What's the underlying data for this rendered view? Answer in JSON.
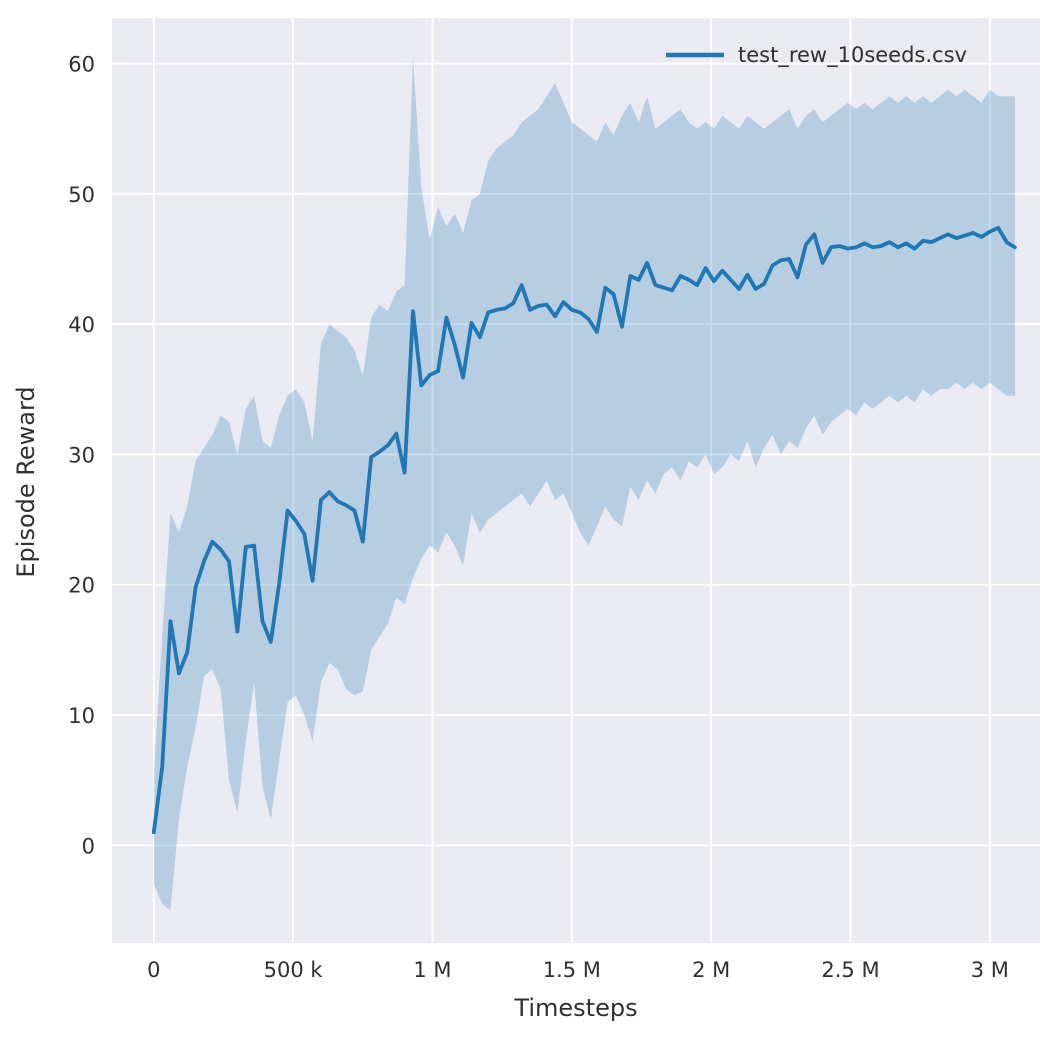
{
  "chart_data": {
    "type": "line",
    "title": "",
    "xlabel": "Timesteps",
    "ylabel": "Episode Reward",
    "legend": [
      {
        "label": "test_rew_10seeds.csv",
        "color": "#1f77b4"
      }
    ],
    "legend_position": "upper right",
    "grid": true,
    "plot_bg": "#eaeaf2",
    "grid_color": "#ffffff",
    "line_color": "#1f77b4",
    "band_color": "#1f77b4",
    "band_opacity": 0.25,
    "xlim": [
      -150000,
      3180000
    ],
    "ylim": [
      -7.5,
      63.5
    ],
    "xticks": {
      "values": [
        0,
        500000,
        1000000,
        1500000,
        2000000,
        2500000,
        3000000
      ],
      "labels": [
        "0",
        "500 k",
        "1 M",
        "1.5 M",
        "2 M",
        "2.5 M",
        "3 M"
      ]
    },
    "yticks": {
      "values": [
        0,
        10,
        20,
        30,
        40,
        50,
        60
      ],
      "labels": [
        "0",
        "10",
        "20",
        "30",
        "40",
        "50",
        "60"
      ]
    },
    "x": [
      0,
      30000,
      60000,
      90000,
      120000,
      150000,
      180000,
      210000,
      240000,
      270000,
      300000,
      330000,
      360000,
      390000,
      420000,
      450000,
      480000,
      510000,
      540000,
      570000,
      600000,
      630000,
      660000,
      690000,
      720000,
      750000,
      780000,
      810000,
      840000,
      870000,
      900000,
      930000,
      960000,
      990000,
      1020000,
      1050000,
      1080000,
      1110000,
      1140000,
      1170000,
      1200000,
      1230000,
      1260000,
      1290000,
      1320000,
      1350000,
      1380000,
      1410000,
      1440000,
      1470000,
      1500000,
      1530000,
      1560000,
      1590000,
      1620000,
      1650000,
      1680000,
      1710000,
      1740000,
      1770000,
      1800000,
      1830000,
      1860000,
      1890000,
      1920000,
      1950000,
      1980000,
      2010000,
      2040000,
      2070000,
      2100000,
      2130000,
      2160000,
      2190000,
      2220000,
      2250000,
      2280000,
      2310000,
      2340000,
      2370000,
      2400000,
      2430000,
      2460000,
      2490000,
      2520000,
      2550000,
      2580000,
      2610000,
      2640000,
      2670000,
      2700000,
      2730000,
      2760000,
      2790000,
      2820000,
      2850000,
      2880000,
      2910000,
      2940000,
      2970000,
      3000000,
      3030000,
      3060000,
      3090000
    ],
    "mean": [
      1.0,
      6.0,
      17.2,
      13.2,
      14.8,
      19.8,
      21.8,
      23.3,
      22.7,
      21.8,
      16.4,
      22.9,
      23.0,
      17.2,
      15.6,
      20.1,
      25.7,
      24.9,
      23.9,
      20.3,
      26.5,
      27.1,
      26.4,
      26.1,
      25.7,
      23.3,
      29.8,
      30.2,
      30.7,
      31.6,
      28.6,
      41.0,
      35.3,
      36.1,
      36.4,
      40.5,
      38.4,
      35.9,
      40.1,
      39.0,
      40.9,
      41.1,
      41.2,
      41.6,
      43.0,
      41.1,
      41.4,
      41.5,
      40.6,
      41.7,
      41.1,
      40.9,
      40.4,
      39.4,
      42.8,
      42.3,
      39.8,
      43.7,
      43.4,
      44.7,
      43.0,
      42.8,
      42.6,
      43.7,
      43.4,
      43.0,
      44.3,
      43.3,
      44.1,
      43.4,
      42.7,
      43.8,
      42.7,
      43.1,
      44.5,
      44.9,
      45.0,
      43.6,
      46.1,
      46.9,
      44.7,
      45.9,
      46.0,
      45.8,
      45.9,
      46.2,
      45.9,
      46.0,
      46.3,
      45.9,
      46.2,
      45.8,
      46.4,
      46.3,
      46.6,
      46.9,
      46.6,
      46.8,
      47.0,
      46.7,
      47.1,
      47.4,
      46.3,
      45.9
    ],
    "lower": [
      -3.0,
      -4.5,
      -5.0,
      2.0,
      6.0,
      9.0,
      13.0,
      13.5,
      12.0,
      5.0,
      2.5,
      8.0,
      12.5,
      4.5,
      2.0,
      6.5,
      11.0,
      11.5,
      10.0,
      8.0,
      12.5,
      14.0,
      13.5,
      12.0,
      11.5,
      11.8,
      15.0,
      16.0,
      17.0,
      19.0,
      18.5,
      20.5,
      22.0,
      23.0,
      22.5,
      24.0,
      23.0,
      21.5,
      25.5,
      24.0,
      25.0,
      25.5,
      26.0,
      26.5,
      27.0,
      26.0,
      27.0,
      28.0,
      26.5,
      27.0,
      25.5,
      24.0,
      23.0,
      24.5,
      26.0,
      25.0,
      24.5,
      27.5,
      26.5,
      28.0,
      27.0,
      28.5,
      29.0,
      28.0,
      29.5,
      29.0,
      30.0,
      28.5,
      29.0,
      30.0,
      29.5,
      31.0,
      29.0,
      30.5,
      31.5,
      30.0,
      31.0,
      30.5,
      32.0,
      33.0,
      31.5,
      32.5,
      33.0,
      33.5,
      33.0,
      34.0,
      33.5,
      34.0,
      34.5,
      34.0,
      34.5,
      34.0,
      35.0,
      34.5,
      35.0,
      35.0,
      35.5,
      35.0,
      35.5,
      35.0,
      35.5,
      35.0,
      34.5,
      34.5
    ],
    "upper": [
      5.5,
      16.0,
      25.5,
      24.0,
      26.0,
      29.5,
      30.5,
      31.5,
      33.0,
      32.5,
      30.0,
      33.5,
      34.5,
      31.0,
      30.5,
      33.0,
      34.5,
      35.0,
      34.0,
      31.0,
      38.5,
      40.0,
      39.5,
      39.0,
      38.0,
      36.0,
      40.5,
      41.5,
      41.0,
      42.5,
      43.0,
      60.5,
      50.5,
      46.5,
      49.0,
      47.5,
      48.5,
      47.0,
      49.5,
      50.0,
      52.5,
      53.5,
      54.0,
      54.5,
      55.5,
      56.0,
      56.5,
      57.5,
      58.5,
      57.0,
      55.5,
      55.0,
      54.5,
      54.0,
      55.5,
      54.5,
      56.0,
      57.0,
      55.5,
      57.5,
      55.0,
      55.5,
      56.0,
      56.5,
      55.5,
      55.0,
      55.5,
      55.0,
      56.0,
      55.5,
      55.0,
      56.0,
      55.5,
      55.0,
      55.5,
      56.0,
      56.5,
      55.0,
      56.0,
      56.5,
      55.5,
      56.0,
      56.5,
      57.0,
      56.5,
      57.0,
      56.5,
      57.0,
      57.5,
      57.0,
      57.5,
      57.0,
      57.5,
      57.0,
      57.5,
      58.0,
      57.5,
      58.0,
      57.5,
      57.0,
      58.0,
      57.5,
      57.5,
      57.5
    ]
  }
}
